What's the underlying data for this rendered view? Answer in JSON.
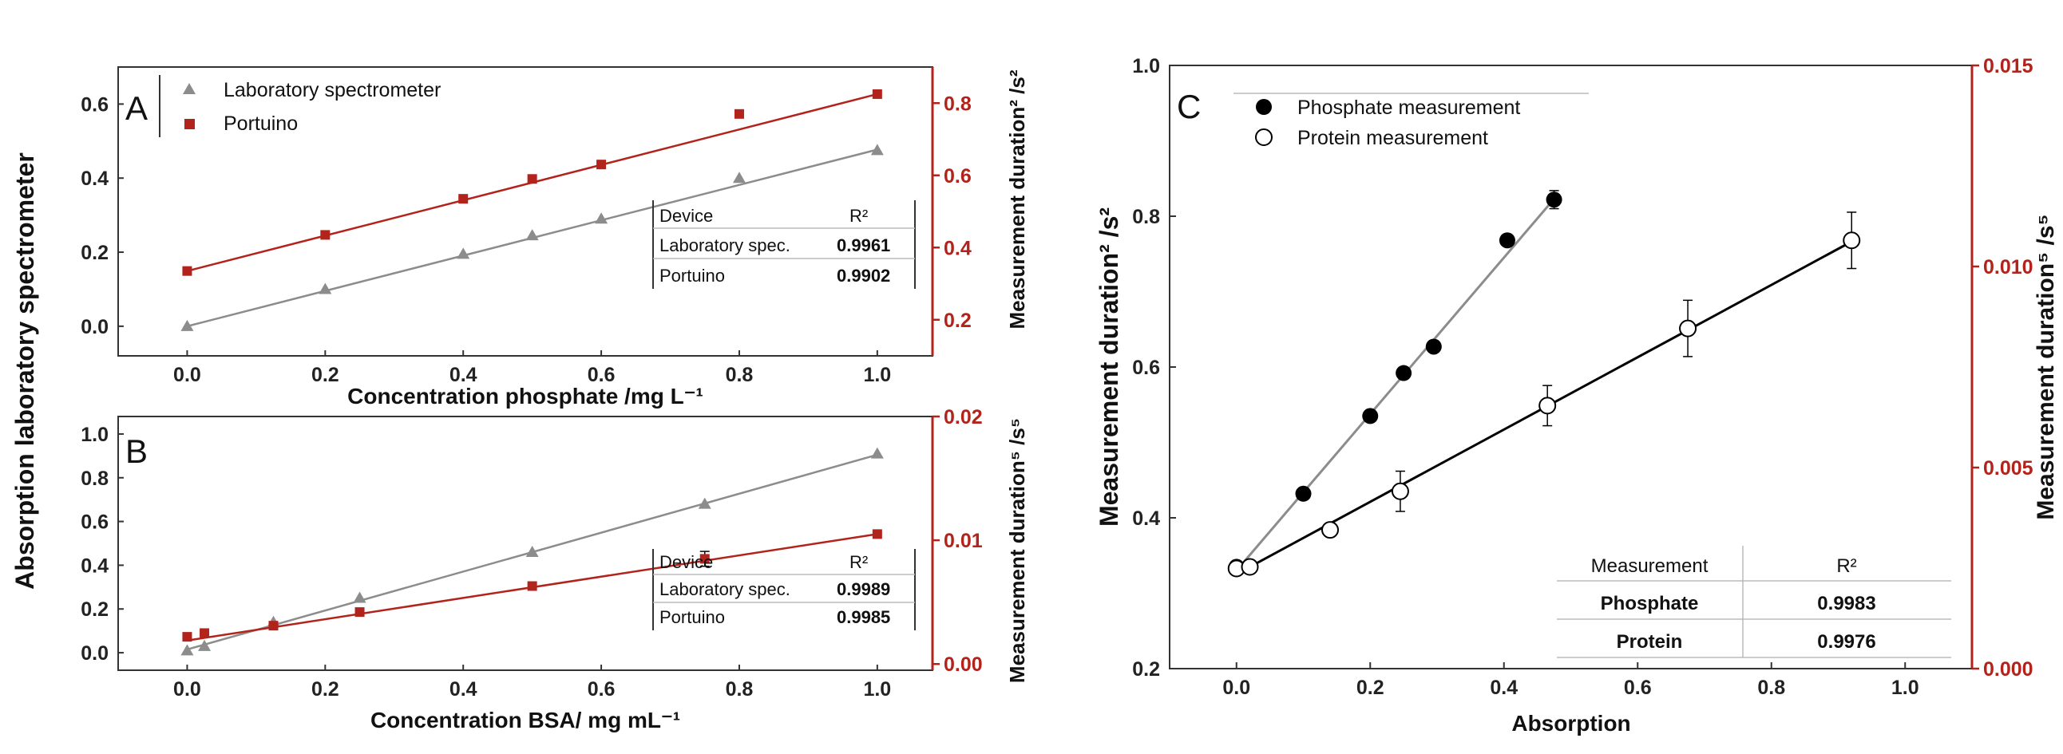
{
  "chart_data": [
    {
      "id": "A",
      "type": "scatter",
      "panel_label": "A",
      "xlabel": "Concentration phosphate /mg L⁻¹",
      "ylabel": "Absorption laboratory spectrometer",
      "ylabel_right": "Measurement duration² /s²",
      "xlim": [
        -0.1,
        1.08
      ],
      "ylim": [
        -0.08,
        0.7
      ],
      "ylim_right": [
        0.1,
        0.9
      ],
      "x_ticks": [
        "0.0",
        "0.2",
        "0.4",
        "0.6",
        "0.8",
        "1.0"
      ],
      "y_ticks": [
        "0.0",
        "0.2",
        "0.4",
        "0.6"
      ],
      "y_ticks_right": [
        "0.2",
        "0.4",
        "0.6",
        "0.8"
      ],
      "legend": [
        "Laboratory spectrometer",
        "Portuino"
      ],
      "series": [
        {
          "name": "Laboratory spectrometer",
          "axis": "left",
          "color": "#8c8c8c",
          "marker": "triangle",
          "x": [
            0,
            0.2,
            0.4,
            0.5,
            0.6,
            0.8,
            1.0
          ],
          "y": [
            0.0,
            0.1,
            0.195,
            0.245,
            0.29,
            0.4,
            0.475
          ],
          "fit": [
            [
              0,
              0.0
            ],
            [
              1.0,
              0.477
            ]
          ]
        },
        {
          "name": "Portuino",
          "axis": "right",
          "color": "#b2231c",
          "marker": "square",
          "x": [
            0,
            0.2,
            0.4,
            0.5,
            0.6,
            0.8,
            1.0
          ],
          "y": [
            0.335,
            0.435,
            0.535,
            0.59,
            0.63,
            0.77,
            0.825
          ],
          "fit": [
            [
              0,
              0.335
            ],
            [
              1.0,
              0.825
            ]
          ]
        }
      ],
      "table": {
        "headers": [
          "Device",
          "R²"
        ],
        "rows": [
          [
            "Laboratory spec.",
            "0.9961"
          ],
          [
            "Portuino",
            "0.9902"
          ]
        ]
      }
    },
    {
      "id": "B",
      "type": "scatter",
      "panel_label": "B",
      "xlabel": "Concentration BSA/ mg mL⁻¹",
      "ylabel": "Absorption laboratory spectrometer",
      "ylabel_right": "Measurement duration⁵ /s⁵",
      "xlim": [
        -0.1,
        1.08
      ],
      "ylim": [
        -0.08,
        1.08
      ],
      "ylim_right": [
        -0.0005,
        0.02
      ],
      "x_ticks": [
        "0.0",
        "0.2",
        "0.4",
        "0.6",
        "0.8",
        "1.0"
      ],
      "y_ticks": [
        "0.0",
        "0.2",
        "0.4",
        "0.6",
        "0.8",
        "1.0"
      ],
      "y_ticks_right": [
        "0.00",
        "0.01",
        "0.02"
      ],
      "series": [
        {
          "name": "Laboratory spectrometer",
          "axis": "left",
          "color": "#8c8c8c",
          "marker": "triangle",
          "x": [
            0,
            0.025,
            0.125,
            0.25,
            0.5,
            0.75,
            1.0
          ],
          "y": [
            0.01,
            0.03,
            0.14,
            0.25,
            0.46,
            0.68,
            0.91
          ],
          "fit": [
            [
              0,
              0.015
            ],
            [
              1.0,
              0.905
            ]
          ]
        },
        {
          "name": "Portuino",
          "axis": "right",
          "color": "#b2231c",
          "marker": "square",
          "x": [
            0,
            0.025,
            0.125,
            0.25,
            0.5,
            0.75,
            1.0
          ],
          "y": [
            0.0022,
            0.0025,
            0.0031,
            0.0042,
            0.0063,
            0.0085,
            0.0105
          ],
          "err": [
            0,
            0,
            0,
            0,
            0,
            0.0006,
            0
          ],
          "fit": [
            [
              0,
              0.0019
            ],
            [
              1.0,
              0.0105
            ]
          ]
        }
      ],
      "table": {
        "headers": [
          "Device",
          "R²"
        ],
        "rows": [
          [
            "Laboratory spec.",
            "0.9989"
          ],
          [
            "Portuino",
            "0.9985"
          ]
        ]
      }
    },
    {
      "id": "C",
      "type": "scatter",
      "panel_label": "C",
      "xlabel": "Absorption",
      "ylabel": "Measurement duration² /s²",
      "ylabel_right": "Measurement duration⁵ /s⁵",
      "xlim": [
        -0.1,
        1.1
      ],
      "ylim": [
        0.2,
        1.0
      ],
      "ylim_right": [
        0.0,
        0.015
      ],
      "x_ticks": [
        "0.0",
        "0.2",
        "0.4",
        "0.6",
        "0.8",
        "1.0"
      ],
      "y_ticks": [
        "0.2",
        "0.4",
        "0.6",
        "0.8",
        "1.0"
      ],
      "y_ticks_right": [
        "0.000",
        "0.005",
        "0.010",
        "0.015"
      ],
      "legend": [
        "Phosphate measurement",
        "Protein measurement"
      ],
      "series": [
        {
          "name": "Phosphate measurement",
          "axis": "left",
          "color": "#000000",
          "marker": "filled-circle",
          "x": [
            0.0,
            0.1,
            0.2,
            0.25,
            0.295,
            0.405,
            0.475
          ],
          "y": [
            0.335,
            0.432,
            0.535,
            0.592,
            0.627,
            0.768,
            0.822
          ],
          "err": [
            0,
            0,
            0,
            0,
            0,
            0,
            0.012
          ],
          "fit": [
            [
              0.0,
              0.33
            ],
            [
              0.475,
              0.823
            ]
          ],
          "fit_color": "#8c8c8c"
        },
        {
          "name": "Protein measurement",
          "axis": "right",
          "color": "#000000",
          "marker": "open-circle",
          "x": [
            0.0,
            0.02,
            0.14,
            0.245,
            0.465,
            0.675,
            0.92
          ],
          "y": [
            0.00249,
            0.00253,
            0.00345,
            0.00441,
            0.00654,
            0.00846,
            0.01065
          ],
          "err": [
            0,
            0,
            0,
            0.0005,
            0.0005,
            0.0007,
            0.0007
          ],
          "fit": [
            [
              0.0,
              0.00235
            ],
            [
              0.92,
              0.01062
            ]
          ],
          "fit_color": "#000000"
        }
      ],
      "table": {
        "headers": [
          "Measurement",
          "R²"
        ],
        "rows": [
          [
            "Phosphate",
            "0.9983"
          ],
          [
            "Protein",
            "0.9976"
          ]
        ]
      }
    }
  ]
}
